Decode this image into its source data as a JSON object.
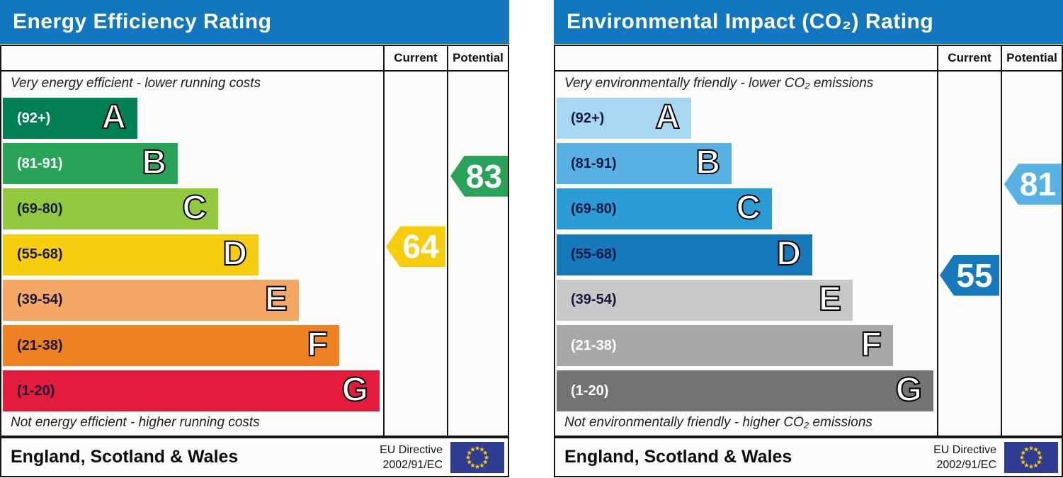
{
  "page": {
    "background": "#ffffff"
  },
  "eu_flag": {
    "background": "#2E3D93",
    "star_color": "#FFCC00"
  },
  "charts": [
    {
      "title": "Energy Efficiency Rating",
      "accent_color": "#1277BE",
      "columns": {
        "current_label": "Current",
        "potential_label": "Potential"
      },
      "top_note": "Very energy efficient - lower running costs",
      "bottom_note": "Not energy efficient - higher running costs",
      "bands": [
        {
          "letter": "A",
          "range_label": "(92+)",
          "range": [
            92,
            100
          ],
          "color": "#008054",
          "label_color": "#FFFFFF"
        },
        {
          "letter": "B",
          "range_label": "(81-91)",
          "range": [
            81,
            91
          ],
          "color": "#2AA35A",
          "label_color": "#FFFFFF"
        },
        {
          "letter": "C",
          "range_label": "(69-80)",
          "range": [
            69,
            80
          ],
          "color": "#92C83E",
          "label_color": "#181840"
        },
        {
          "letter": "D",
          "range_label": "(55-68)",
          "range": [
            55,
            68
          ],
          "color": "#F7CE0D",
          "label_color": "#181840"
        },
        {
          "letter": "E",
          "range_label": "(39-54)",
          "range": [
            39,
            54
          ],
          "color": "#F5A766",
          "label_color": "#181840"
        },
        {
          "letter": "F",
          "range_label": "(21-38)",
          "range": [
            21,
            38
          ],
          "color": "#EE8122",
          "label_color": "#181840"
        },
        {
          "letter": "G",
          "range_label": "(1-20)",
          "range": [
            1,
            20
          ],
          "color": "#E31C3D",
          "label_color": "#181840"
        }
      ],
      "current": {
        "value": "64",
        "band": "D",
        "color": "#F7CE0D"
      },
      "potential": {
        "value": "83",
        "band": "B",
        "color": "#2AA35A"
      },
      "footer": {
        "region": "England, Scotland & Wales",
        "directive": [
          "EU Directive",
          "2002/91/EC"
        ]
      }
    },
    {
      "title": "Environmental Impact (CO₂) Rating",
      "accent_color": "#1277BE",
      "columns": {
        "current_label": "Current",
        "potential_label": "Potential"
      },
      "top_note": "Very environmentally friendly - lower CO₂ emissions",
      "bottom_note": "Not environmentally friendly - higher CO₂ emissions",
      "bands": [
        {
          "letter": "A",
          "range_label": "(92+)",
          "range": [
            92,
            100
          ],
          "color": "#A8D7F1",
          "label_color": "#181840"
        },
        {
          "letter": "B",
          "range_label": "(81-91)",
          "range": [
            81,
            91
          ],
          "color": "#57B1E3",
          "label_color": "#181840"
        },
        {
          "letter": "C",
          "range_label": "(69-80)",
          "range": [
            69,
            80
          ],
          "color": "#2C9CD7",
          "label_color": "#181840"
        },
        {
          "letter": "D",
          "range_label": "(55-68)",
          "range": [
            55,
            68
          ],
          "color": "#1579BC",
          "label_color": "#181840"
        },
        {
          "letter": "E",
          "range_label": "(39-54)",
          "range": [
            39,
            54
          ],
          "color": "#C8C8C8",
          "label_color": "#181840"
        },
        {
          "letter": "F",
          "range_label": "(21-38)",
          "range": [
            21,
            38
          ],
          "color": "#A7A7A7",
          "label_color": "#FFFFFF"
        },
        {
          "letter": "G",
          "range_label": "(1-20)",
          "range": [
            1,
            20
          ],
          "color": "#737373",
          "label_color": "#FFFFFF"
        }
      ],
      "current": {
        "value": "55",
        "band": "D",
        "color": "#1579BC"
      },
      "potential": {
        "value": "81",
        "band": "B",
        "color": "#57B1E3"
      },
      "footer": {
        "region": "England, Scotland & Wales",
        "directive": [
          "EU Directive",
          "2002/91/EC"
        ]
      }
    }
  ],
  "chart_data": [
    {
      "type": "bar",
      "title": "Energy Efficiency Rating",
      "orientation": "horizontal",
      "categories": [
        "A (92+)",
        "B (81-91)",
        "C (69-80)",
        "D (55-68)",
        "E (39-54)",
        "F (21-38)",
        "G (1-20)"
      ],
      "values": [
        36,
        47,
        58,
        68,
        79,
        90,
        100
      ],
      "values_note": "bar lengths as percent of widest band (decorative scale)",
      "band_colors": [
        "#008054",
        "#2AA35A",
        "#92C83E",
        "#F7CE0D",
        "#F5A766",
        "#EE8122",
        "#E31C3D"
      ],
      "markers": {
        "current": 64,
        "current_band": "D",
        "potential": 83,
        "potential_band": "B"
      },
      "column_labels": [
        "Current",
        "Potential"
      ],
      "top_annotation": "Very energy efficient - lower running costs",
      "bottom_annotation": "Not energy efficient - higher running costs",
      "footer": "England, Scotland & Wales · EU Directive 2002/91/EC"
    },
    {
      "type": "bar",
      "title": "Environmental Impact (CO₂) Rating",
      "orientation": "horizontal",
      "categories": [
        "A (92+)",
        "B (81-91)",
        "C (69-80)",
        "D (55-68)",
        "E (39-54)",
        "F (21-38)",
        "G (1-20)"
      ],
      "values": [
        36,
        47,
        58,
        68,
        79,
        90,
        100
      ],
      "values_note": "bar lengths as percent of widest band (decorative scale)",
      "band_colors": [
        "#A8D7F1",
        "#57B1E3",
        "#2C9CD7",
        "#1579BC",
        "#C8C8C8",
        "#A7A7A7",
        "#737373"
      ],
      "markers": {
        "current": 55,
        "current_band": "D",
        "potential": 81,
        "potential_band": "B"
      },
      "column_labels": [
        "Current",
        "Potential"
      ],
      "top_annotation": "Very environmentally friendly - lower CO₂ emissions",
      "bottom_annotation": "Not environmentally friendly - higher CO₂ emissions",
      "footer": "England, Scotland & Wales · EU Directive 2002/91/EC"
    }
  ]
}
